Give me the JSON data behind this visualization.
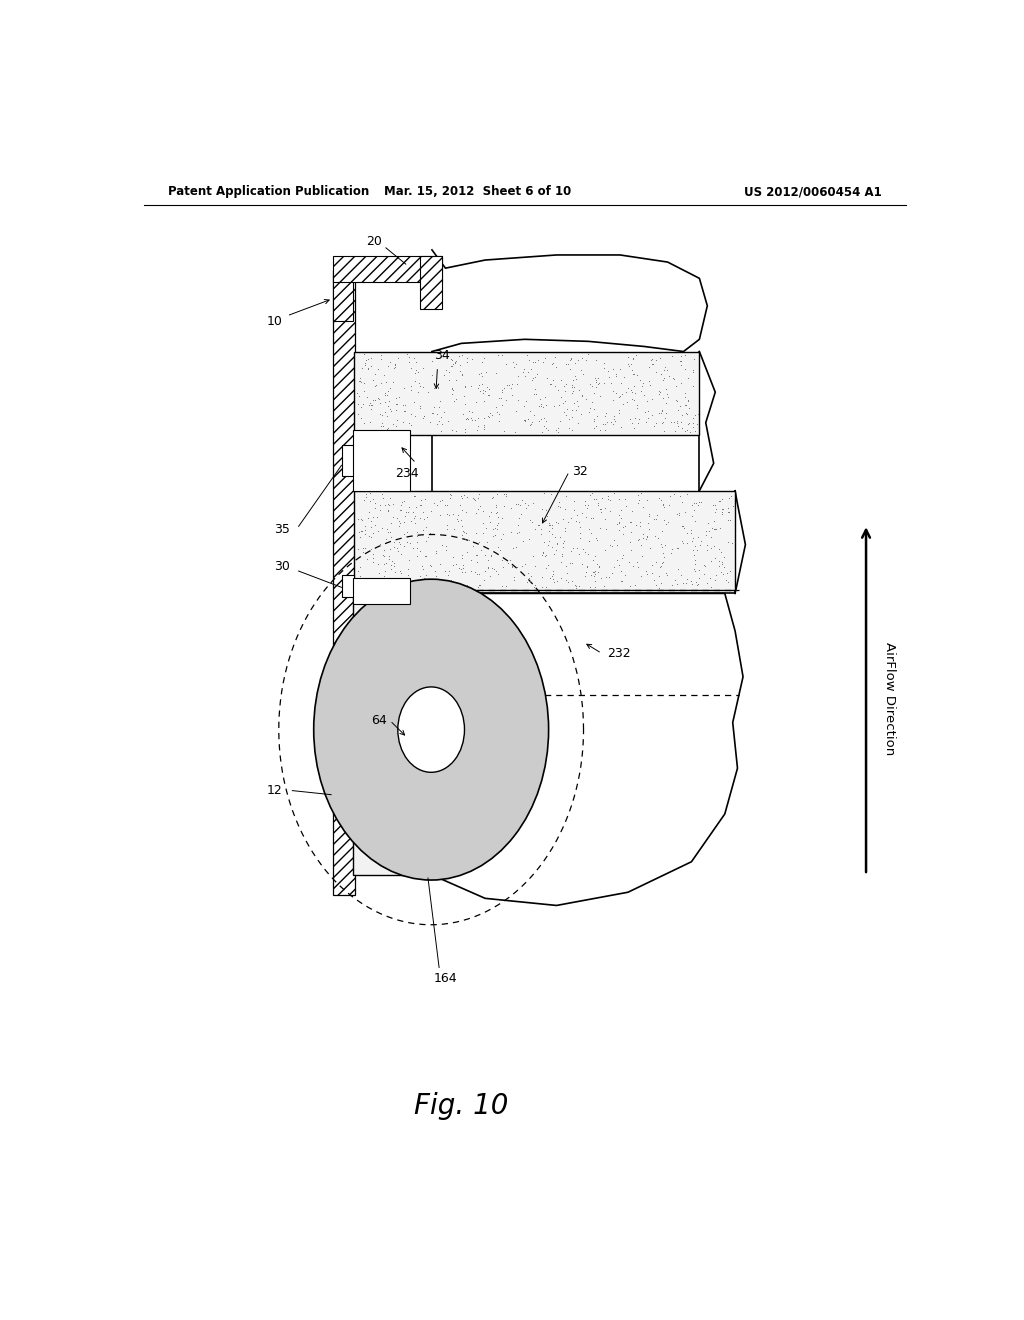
{
  "bg_color": "#ffffff",
  "header_left": "Patent Application Publication",
  "header_mid": "Mar. 15, 2012  Sheet 6 of 10",
  "header_right": "US 2012/0060454 A1",
  "fig_label": "Fig. 10",
  "fig_label_fontsize": 20,
  "label_fontsize": 9
}
